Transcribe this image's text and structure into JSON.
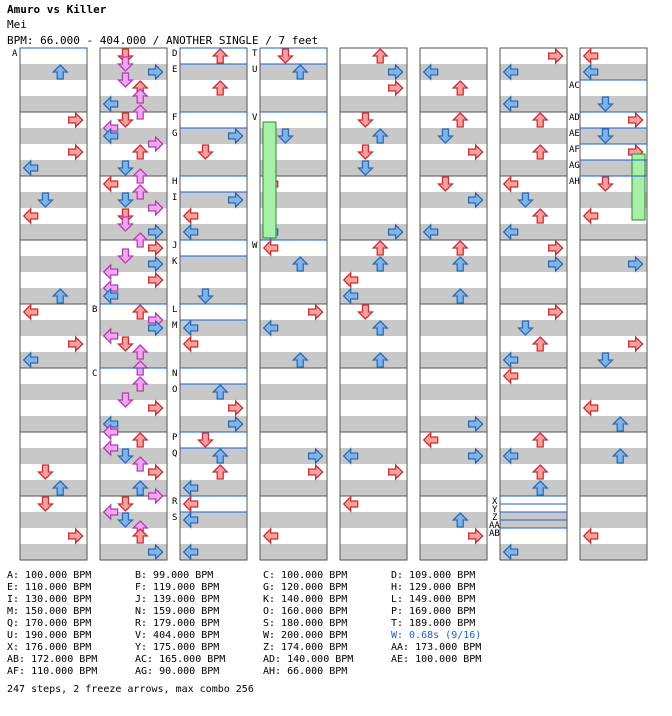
{
  "header": {
    "title": "Amuro vs Killer",
    "artist": "Mei",
    "bpm_line": "BPM: 66.000 - 404.000 / ANOTHER SINGLE / 7 feet"
  },
  "colors": {
    "stripe": "#c8c8c8",
    "measure_line": "#555555",
    "bpm_change_line": "#1a5fd0",
    "red_arrow": "#f4a0a0",
    "blue_arrow": "#7fb3ea",
    "pink_arrow": "#f2a6f2",
    "freeze": "#a8f0a8",
    "stop_text": "#1a5fd0"
  },
  "chart": {
    "columns": 8,
    "markers": [
      {
        "label": "A",
        "col": 0
      },
      {
        "label": "B",
        "col": 1
      },
      {
        "label": "C",
        "col": 1
      },
      {
        "label": "D",
        "col": 2
      },
      {
        "label": "E",
        "col": 2
      },
      {
        "label": "F",
        "col": 2
      },
      {
        "label": "G",
        "col": 2
      },
      {
        "label": "H",
        "col": 2
      },
      {
        "label": "I",
        "col": 2
      },
      {
        "label": "J",
        "col": 2
      },
      {
        "label": "K",
        "col": 2
      },
      {
        "label": "L",
        "col": 2
      },
      {
        "label": "M",
        "col": 2
      },
      {
        "label": "N",
        "col": 2
      },
      {
        "label": "O",
        "col": 2
      },
      {
        "label": "P",
        "col": 2
      },
      {
        "label": "Q",
        "col": 2
      },
      {
        "label": "R",
        "col": 2
      },
      {
        "label": "S",
        "col": 2
      },
      {
        "label": "T",
        "col": 3
      },
      {
        "label": "U",
        "col": 3
      },
      {
        "label": "V",
        "col": 3
      },
      {
        "label": "W",
        "col": 3
      },
      {
        "label": "X",
        "col": 6
      },
      {
        "label": "Y",
        "col": 6
      },
      {
        "label": "Z",
        "col": 6
      },
      {
        "label": "AA",
        "col": 6
      },
      {
        "label": "AB",
        "col": 6
      },
      {
        "label": "AC",
        "col": 7
      },
      {
        "label": "AD",
        "col": 7
      },
      {
        "label": "AE",
        "col": 7
      },
      {
        "label": "AF",
        "col": 7
      },
      {
        "label": "AG",
        "col": 7
      },
      {
        "label": "AH",
        "col": 7
      }
    ]
  },
  "bpm_list": [
    [
      "A: 100.000 BPM",
      "B: 99.000 BPM",
      "C: 100.000 BPM",
      "D: 109.000 BPM"
    ],
    [
      "E: 110.000 BPM",
      "F: 119.000 BPM",
      "G: 120.000 BPM",
      "H: 129.000 BPM"
    ],
    [
      "I: 130.000 BPM",
      "J: 139.000 BPM",
      "K: 140.000 BPM",
      "L: 149.000 BPM"
    ],
    [
      "M: 150.000 BPM",
      "N: 159.000 BPM",
      "O: 160.000 BPM",
      "P: 169.000 BPM"
    ],
    [
      "Q: 170.000 BPM",
      "R: 179.000 BPM",
      "S: 180.000 BPM",
      "T: 189.000 BPM"
    ],
    [
      "U: 190.000 BPM",
      "V: 404.000 BPM",
      "W: 200.000 BPM",
      "W: 0.68s (9/16)"
    ],
    [
      "X: 176.000 BPM",
      "Y: 175.000 BPM",
      "Z: 174.000 BPM",
      "AA: 173.000 BPM"
    ],
    [
      "AB: 172.000 BPM",
      "AC: 165.000 BPM",
      "AD: 140.000 BPM",
      "AE: 100.000 BPM"
    ],
    [
      "AF: 110.000 BPM",
      "AG: 90.000 BPM",
      "AH: 66.000 BPM",
      ""
    ]
  ],
  "footer": "247 steps, 2 freeze arrows, max combo 256"
}
